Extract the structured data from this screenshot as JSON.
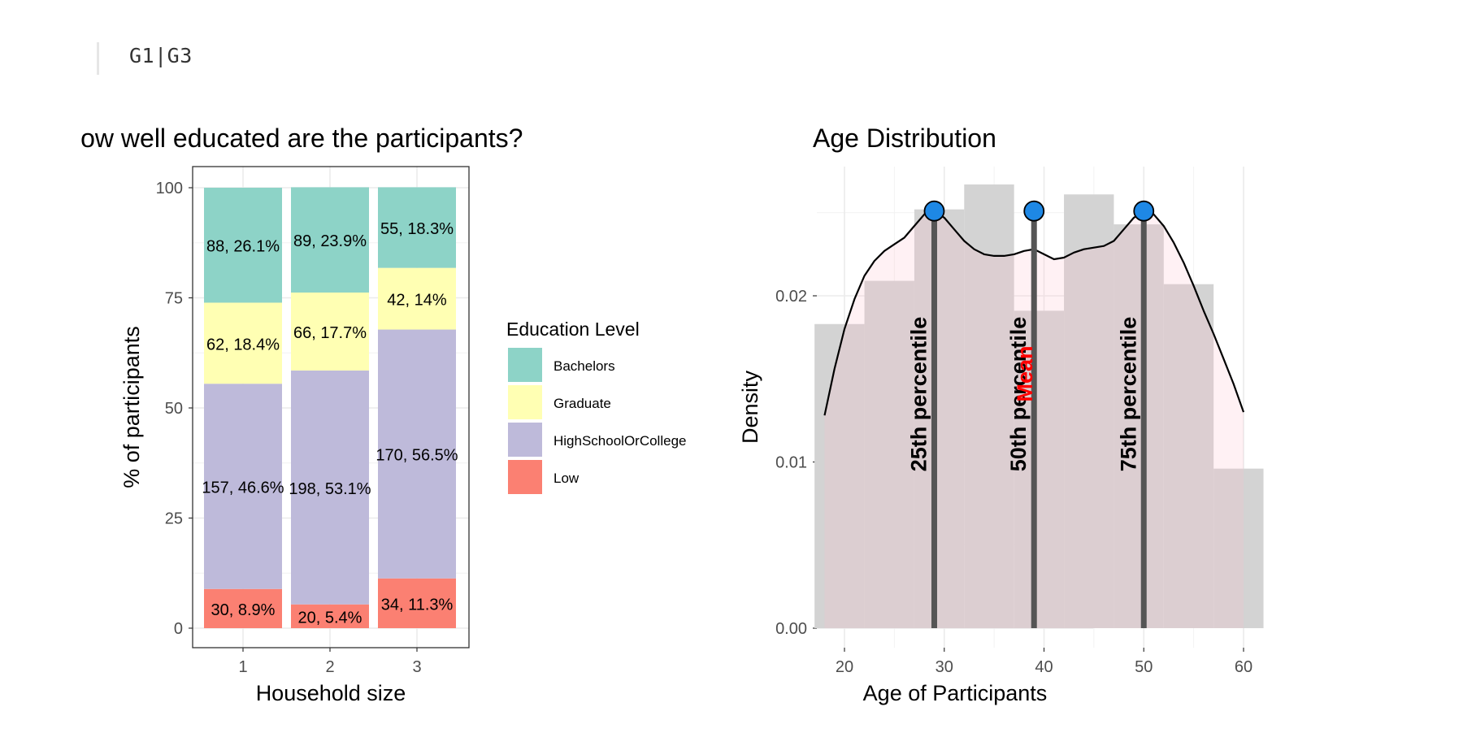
{
  "header": {
    "code_label": "G1|G3"
  },
  "chart_data": [
    {
      "type": "bar",
      "stacked": true,
      "title": "How well educated are the participants?",
      "xlabel": "Household size",
      "ylabel": "% of participants",
      "categories": [
        "1",
        "2",
        "3"
      ],
      "yticks": [
        "0",
        "25",
        "50",
        "75",
        "100"
      ],
      "ylim": [
        0,
        100
      ],
      "legend": {
        "title": "Education Level",
        "position": "right",
        "items": [
          "Bachelors",
          "Graduate",
          "HighSchoolOrCollege",
          "Low"
        ]
      },
      "colors": {
        "Bachelors": "#8dd3c7",
        "Graduate": "#ffffb3",
        "HighSchoolOrCollege": "#bebada",
        "Low": "#fb8072"
      },
      "series": [
        {
          "name": "Low",
          "values": [
            8.9,
            5.4,
            11.3
          ],
          "labels": [
            "30, 8.9%",
            "20, 5.4%",
            "34, 11.3%"
          ]
        },
        {
          "name": "HighSchoolOrCollege",
          "values": [
            46.6,
            53.1,
            56.5
          ],
          "labels": [
            "157, 46.6%",
            "198, 53.1%",
            "170, 56.5%"
          ]
        },
        {
          "name": "Graduate",
          "values": [
            18.4,
            17.7,
            14.0
          ],
          "labels": [
            "62, 18.4%",
            "66, 17.7%",
            "42, 14%"
          ]
        },
        {
          "name": "Bachelors",
          "values": [
            26.1,
            23.9,
            18.3
          ],
          "labels": [
            "88, 26.1%",
            "89, 23.9%",
            "55, 18.3%"
          ]
        }
      ]
    },
    {
      "type": "histogram_density",
      "title": "Age Distribution",
      "xlabel": "Age of Participants",
      "ylabel": "Density",
      "xlim": [
        16,
        64
      ],
      "ylim": [
        0,
        0.0278
      ],
      "xticks": [
        "20",
        "30",
        "40",
        "50",
        "60"
      ],
      "yticks": [
        "0.00",
        "0.01",
        "0.02"
      ],
      "histogram": {
        "bin_width": 5,
        "bins": [
          {
            "x0": 17,
            "x1": 22,
            "density": 0.0183
          },
          {
            "x0": 22,
            "x1": 27,
            "density": 0.0209
          },
          {
            "x0": 27,
            "x1": 32,
            "density": 0.0252
          },
          {
            "x0": 32,
            "x1": 37,
            "density": 0.0267
          },
          {
            "x0": 37,
            "x1": 42,
            "density": 0.0191
          },
          {
            "x0": 42,
            "x1": 47,
            "density": 0.0261
          },
          {
            "x0": 47,
            "x1": 52,
            "density": 0.0243
          },
          {
            "x0": 52,
            "x1": 57,
            "density": 0.0207
          },
          {
            "x0": 57,
            "x1": 62,
            "density": 0.0096
          }
        ]
      },
      "density_curve": {
        "x": [
          18,
          19,
          20,
          21,
          22,
          23,
          24,
          25,
          26,
          27,
          28,
          29,
          30,
          31,
          32,
          33,
          34,
          35,
          36,
          37,
          38,
          39,
          40,
          41,
          42,
          43,
          44,
          45,
          46,
          47,
          48,
          49,
          50,
          51,
          52,
          53,
          54,
          55,
          56,
          57,
          58,
          59,
          60
        ],
        "y": [
          0.0128,
          0.0156,
          0.018,
          0.0198,
          0.0212,
          0.0221,
          0.0227,
          0.0231,
          0.0235,
          0.0242,
          0.0249,
          0.0251,
          0.0247,
          0.024,
          0.0233,
          0.0228,
          0.0225,
          0.0224,
          0.0224,
          0.0225,
          0.0227,
          0.0228,
          0.0225,
          0.0222,
          0.0223,
          0.0226,
          0.0228,
          0.0229,
          0.023,
          0.0233,
          0.024,
          0.0247,
          0.0251,
          0.0249,
          0.0242,
          0.0232,
          0.022,
          0.0206,
          0.0191,
          0.0177,
          0.0162,
          0.0147,
          0.013
        ]
      },
      "percentiles": [
        {
          "label": "25th percentile",
          "age": 29,
          "top": 0.0251
        },
        {
          "label": "50th percentile",
          "age": 39,
          "top": 0.0251
        },
        {
          "label": "75th percentile",
          "age": 50,
          "top": 0.0251
        }
      ],
      "mean": {
        "label": "Mean",
        "age": 39
      },
      "colors": {
        "histogram": "#d3d3d3",
        "density_fill": "#ffc0cb",
        "percentile_line": "#555555",
        "percentile_point": "#1e88e5",
        "mean_text": "#ff0000"
      }
    }
  ]
}
